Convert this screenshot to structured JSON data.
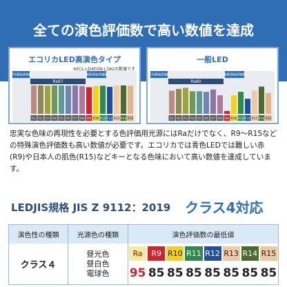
{
  "title": "全ての演色評価数で高い数値を達成",
  "panels": [
    {
      "title": "エコリカLED高演色タイプ",
      "note": "※ECL-LD4EGN-L3A2の数値です",
      "average_label": "平均演色評価数",
      "special_label": "特殊演色評価数",
      "ra_label": "Ra97",
      "values": [
        98,
        98,
        97,
        98,
        98,
        97,
        98,
        96,
        92,
        96,
        97,
        93,
        98,
        98,
        97
      ]
    },
    {
      "title": "一般LED",
      "average_label": "平均演色評価数",
      "special_label": "特殊演色評価数",
      "ra_label": "Ra80",
      "values": [
        80,
        86,
        90,
        78,
        78,
        76,
        84,
        64,
        10,
        64,
        76,
        52,
        80,
        94,
        72
      ]
    }
  ],
  "index_labels": [
    "R1",
    "R2",
    "R3",
    "R4",
    "R5",
    "R6",
    "R7",
    "R8",
    "R9",
    "R10",
    "R11",
    "R12",
    "R13",
    "R14",
    "R15"
  ],
  "index_colors": [
    "#b98a86",
    "#8f8a4e",
    "#a2a23a",
    "#6c9a5a",
    "#5f9a98",
    "#6f86b4",
    "#8c76a8",
    "#b0799a",
    "#d2232a",
    "#f2d21b",
    "#2e8b4a",
    "#1f4fa3",
    "#f0c9a8",
    "#4b6a2c",
    "#e3b38a"
  ],
  "description": "忠実な色味の再現性を必要とする色評価用光源にはRaだけでなく、R9～R15などの特殊演色評価数も高い数値が必要です。エコリカでは青色LEDでは難しい赤(R9)や日本人の肌色(R15)などキーとなる色味において高い数値を達成しています。",
  "standard": {
    "name": "LEDJIS規格 JIS Z 9112：2019",
    "class": "クラス4対応"
  },
  "table": {
    "headers": [
      "演色性の種類",
      "光源色の種類",
      "演色評価数の最低値"
    ],
    "row": {
      "class": "クラス４",
      "light_colors": [
        "昼光色",
        "昼白色",
        "電球色"
      ],
      "indices": [
        "Ra",
        "R9",
        "R10",
        "R11",
        "R12",
        "R13",
        "R14",
        "R15"
      ],
      "index_colors": [
        "#f3eba0",
        "#d2232a",
        "#f2d21b",
        "#2e8b4a",
        "#1f4fa3",
        "#f0c9a8",
        "#4b6a2c",
        "#f0c8a0"
      ],
      "index_text_colors": [
        "#c00000",
        "#ffffff",
        "#222222",
        "#ffffff",
        "#ffffff",
        "#222222",
        "#ffffff",
        "#222222"
      ],
      "minimums": [
        95,
        85,
        85,
        85,
        85,
        85,
        85,
        85
      ],
      "minimum_colors": [
        "#d2232a",
        "#222222",
        "#222222",
        "#222222",
        "#222222",
        "#222222",
        "#222222",
        "#222222"
      ]
    }
  }
}
